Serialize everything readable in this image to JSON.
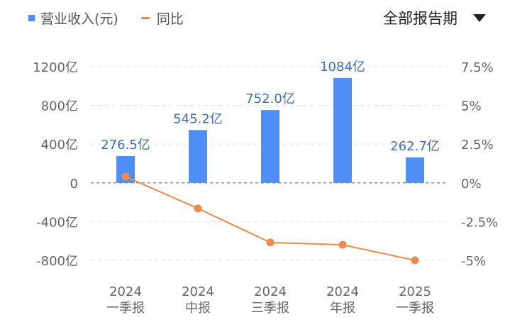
{
  "legend": {
    "bar_label": "营业收入(元)",
    "line_label": "同比"
  },
  "period_selector": {
    "label": "全部报告期"
  },
  "colors": {
    "bar": "#4f8ef7",
    "line": "#ef8a4a",
    "label": "#3f6fb5"
  },
  "chart_data": {
    "type": "bar+line",
    "categories": [
      [
        "2024",
        "一季报"
      ],
      [
        "2024",
        "中报"
      ],
      [
        "2024",
        "三季报"
      ],
      [
        "2024",
        "年报"
      ],
      [
        "2025",
        "一季报"
      ]
    ],
    "series": [
      {
        "name": "营业收入(元)",
        "type": "bar",
        "axis": "left",
        "values": [
          276.5,
          545.2,
          752.0,
          1084,
          262.7
        ],
        "labels": [
          "276.5亿",
          "545.2亿",
          "752.0亿",
          "1084亿",
          "262.7亿"
        ]
      },
      {
        "name": "同比",
        "type": "line",
        "axis": "right",
        "values": [
          0.4,
          -1.65,
          -3.85,
          -4.0,
          -5.0
        ]
      }
    ],
    "left_axis": {
      "ylim": [
        -800,
        1200
      ],
      "ticks": [
        1200,
        800,
        400,
        0,
        -400,
        -800
      ],
      "tick_labels": [
        "1200亿",
        "800亿",
        "400亿",
        "0",
        "-400亿",
        "-800亿"
      ]
    },
    "right_axis": {
      "ylim": [
        -5,
        7.5
      ],
      "ticks": [
        7.5,
        5,
        2.5,
        0,
        -2.5,
        -5
      ],
      "tick_labels": [
        "7.5%",
        "5%",
        "2.5%",
        "0%",
        "-2.5%",
        "-5%"
      ]
    },
    "grid": true
  }
}
